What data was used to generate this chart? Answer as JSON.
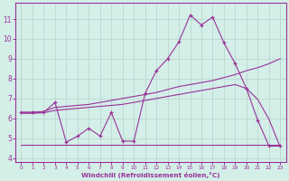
{
  "xlabel": "Windchill (Refroidissement éolien,°C)",
  "bg_color": "#d4eee8",
  "grid_color": "#b8d8d0",
  "line_color": "#993399",
  "xlim": [
    -0.5,
    23.5
  ],
  "ylim": [
    3.8,
    11.8
  ],
  "yticks": [
    4,
    5,
    6,
    7,
    8,
    9,
    10,
    11
  ],
  "xticks": [
    0,
    1,
    2,
    3,
    4,
    5,
    6,
    7,
    8,
    9,
    10,
    11,
    12,
    13,
    14,
    15,
    16,
    17,
    18,
    19,
    20,
    21,
    22,
    23
  ],
  "main_x": [
    0,
    1,
    2,
    3,
    4,
    5,
    6,
    7,
    8,
    9,
    10,
    11,
    12,
    13,
    14,
    15,
    16,
    17,
    18,
    19,
    20,
    21,
    22,
    23
  ],
  "main_y": [
    6.3,
    6.3,
    6.3,
    6.8,
    4.8,
    5.1,
    5.5,
    5.1,
    6.3,
    4.85,
    4.85,
    7.25,
    8.4,
    9.0,
    9.85,
    11.2,
    10.7,
    11.1,
    9.8,
    8.75,
    7.5,
    5.9,
    4.6,
    4.6
  ],
  "line1_x": [
    0,
    1,
    2,
    3,
    4,
    5,
    6,
    7,
    8,
    9,
    10,
    11,
    12,
    13,
    14,
    15,
    16,
    17,
    18,
    19,
    20,
    21,
    22,
    23
  ],
  "line1_y": [
    6.3,
    6.3,
    6.35,
    6.55,
    6.6,
    6.65,
    6.7,
    6.8,
    6.9,
    7.0,
    7.1,
    7.2,
    7.3,
    7.45,
    7.6,
    7.7,
    7.8,
    7.9,
    8.05,
    8.2,
    8.4,
    8.55,
    8.75,
    9.0
  ],
  "line2_x": [
    0,
    1,
    2,
    3,
    4,
    5,
    6,
    7,
    8,
    9,
    10,
    11,
    12,
    13,
    14,
    15,
    16,
    17,
    18,
    19,
    20,
    21,
    22,
    23
  ],
  "line2_y": [
    6.25,
    6.25,
    6.28,
    6.4,
    6.45,
    6.5,
    6.55,
    6.6,
    6.65,
    6.7,
    6.8,
    6.9,
    7.0,
    7.1,
    7.2,
    7.3,
    7.4,
    7.5,
    7.6,
    7.7,
    7.5,
    6.95,
    5.95,
    4.55
  ],
  "line3_x": [
    0,
    1,
    2,
    3,
    4,
    5,
    6,
    7,
    8,
    9,
    10,
    11,
    12,
    13,
    14,
    15,
    16,
    17,
    18,
    19,
    20,
    21,
    22,
    23
  ],
  "line3_y": [
    4.65,
    4.65,
    4.65,
    4.65,
    4.65,
    4.65,
    4.65,
    4.65,
    4.65,
    4.65,
    4.65,
    4.65,
    4.65,
    4.65,
    4.65,
    4.65,
    4.65,
    4.65,
    4.65,
    4.65,
    4.65,
    4.65,
    4.65,
    4.65
  ]
}
